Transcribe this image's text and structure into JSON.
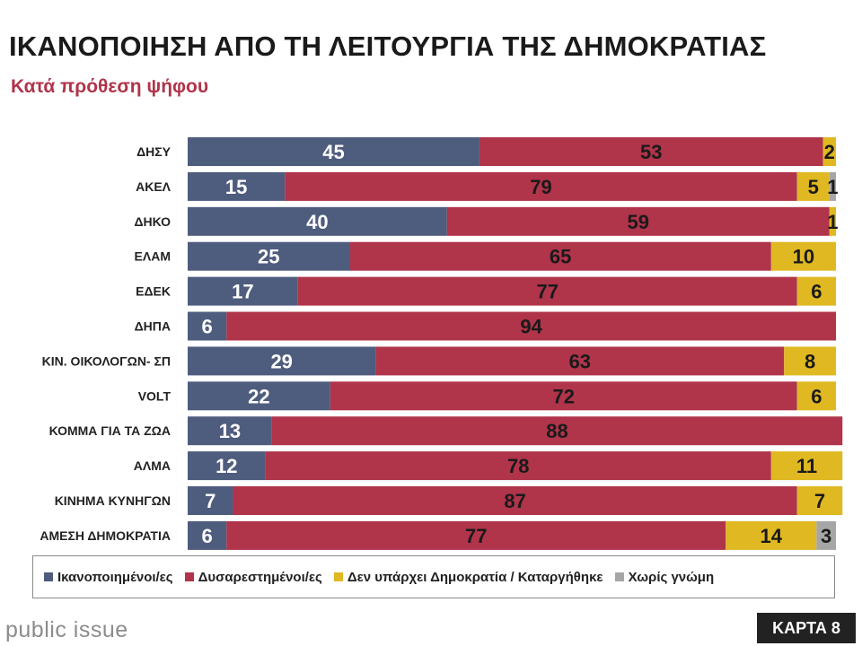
{
  "header": {
    "title": "ΙΚΑΝΟΠΟΙΗΣΗ ΑΠΟ ΤΗ ΛΕΙΤΟΥΡΓΙΑ ΤΗΣ ΔΗΜΟΚΡΑΤΙΑΣ",
    "subtitle": "Κατά πρόθεση ψήφου"
  },
  "footer": {
    "brand": "public issue",
    "map_label": "ΚΑΡΤΑ 8"
  },
  "chart_data": {
    "type": "bar",
    "orientation": "horizontal",
    "stacked": true,
    "title": "ΙΚΑΝΟΠΟΙΗΣΗ ΑΠΟ ΤΗ ΛΕΙΤΟΥΡΓΙΑ ΤΗΣ ΔΗΜΟΚΡΑΤΙΑΣ",
    "subtitle": "Κατά πρόθεση ψήφου",
    "xlim": [
      0,
      100
    ],
    "legend_position": "bottom",
    "categories": [
      "ΔΗΣΥ",
      "ΑΚΕΛ",
      "ΔΗΚΟ",
      "ΕΛΑΜ",
      "ΕΔΕΚ",
      "ΔΗΠΑ",
      "ΚΙΝ. ΟΙΚΟΛΟΓΩΝ- ΣΠ",
      "VOLT",
      "ΚΟΜΜΑ ΓΙΑ ΤΑ ΖΩΑ",
      "ΑΛΜΑ",
      "ΚΙΝΗΜΑ ΚΥΝΗΓΩΝ",
      "ΑΜΕΣΗ ΔΗΜΟΚΡΑΤΙΑ"
    ],
    "series": [
      {
        "name": "Ικανοποιημένοι/ες",
        "color": "#4e5c7e",
        "label_color": "#ffffff",
        "values": [
          45,
          15,
          40,
          25,
          17,
          6,
          29,
          22,
          13,
          12,
          7,
          6
        ]
      },
      {
        "name": "Δυσαρεστημένοι/ες",
        "color": "#b0344a",
        "label_color": "#1a1a1a",
        "values": [
          53,
          79,
          59,
          65,
          77,
          94,
          63,
          72,
          88,
          78,
          87,
          77
        ]
      },
      {
        "name": "Δεν υπάρχει Δημοκρατία / Καταργήθηκε",
        "color": "#dfb822",
        "label_color": "#1a1a1a",
        "values": [
          2,
          5,
          1,
          10,
          6,
          0,
          8,
          6,
          0,
          11,
          7,
          14
        ]
      },
      {
        "name": "Χωρίς γνώμη",
        "color": "#a6a6a6",
        "label_color": "#1a1a1a",
        "values": [
          0,
          1,
          0,
          0,
          0,
          0,
          0,
          0,
          0,
          0,
          0,
          3
        ]
      }
    ]
  }
}
